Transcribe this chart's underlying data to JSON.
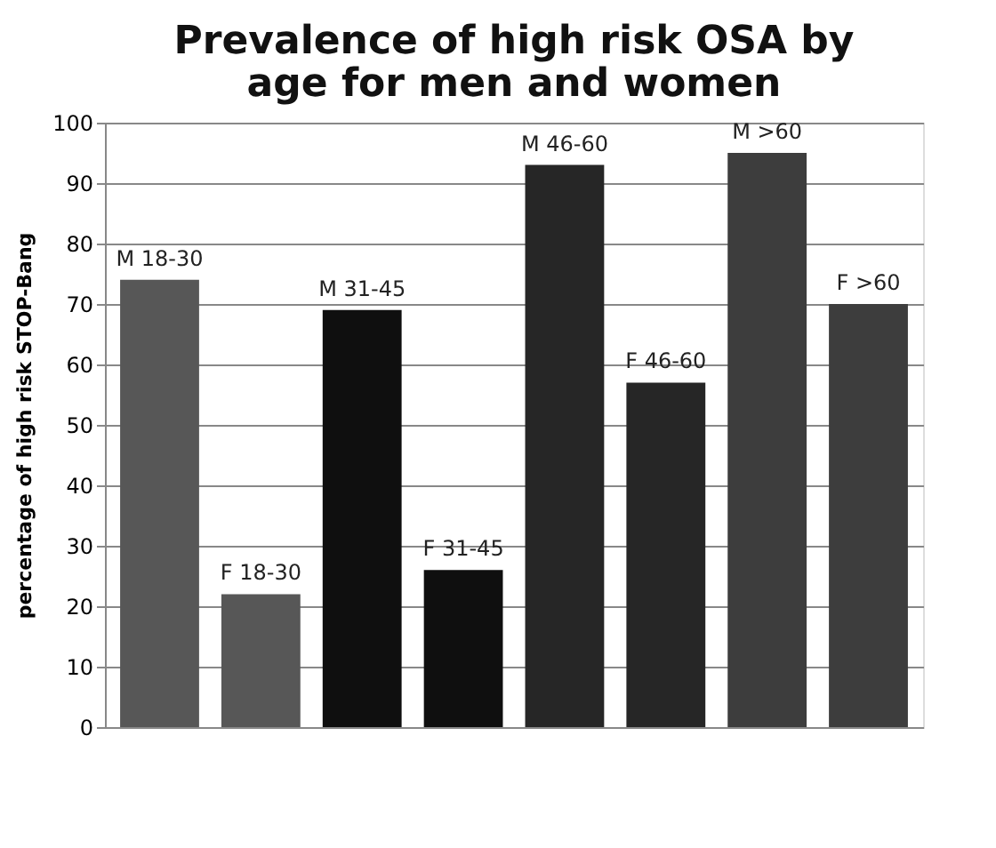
{
  "chart_data": {
    "type": "bar",
    "title": [
      "Prevalence of high risk OSA by",
      "age for men and women"
    ],
    "ylabel": "percentage of high risk STOP-Bang",
    "categories": [
      "M 18-30",
      "F 18-30",
      "M 31-45",
      "F 31-45",
      "M 46-60",
      "F 46-60",
      "M >60",
      "F >60"
    ],
    "values": [
      74,
      22,
      69,
      26,
      93,
      57,
      95,
      70
    ],
    "colors": [
      "#575757",
      "#575757",
      "#0f0f0f",
      "#0f0f0f",
      "#262626",
      "#262626",
      "#3d3d3d",
      "#3d3d3d"
    ],
    "ylim": [
      0,
      100
    ],
    "yticks": [
      0,
      10,
      20,
      30,
      40,
      50,
      60,
      70,
      80,
      90,
      100
    ],
    "grid": "y",
    "tick_labels": "y"
  }
}
